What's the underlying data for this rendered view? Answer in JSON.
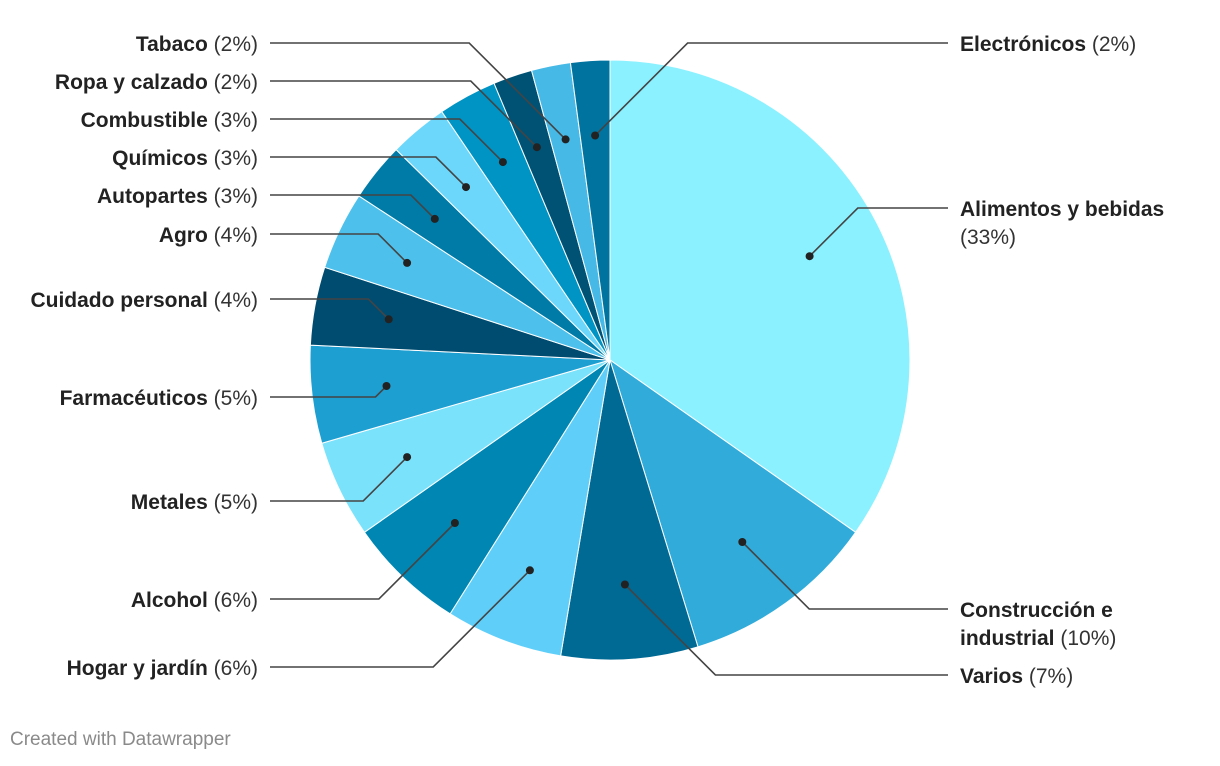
{
  "chart_data": {
    "type": "pie",
    "categories": [
      "Alimentos y bebidas",
      "Construcción e industrial",
      "Varios",
      "Hogar y jardín",
      "Alcohol",
      "Metales",
      "Farmacéuticos",
      "Cuidado personal",
      "Agro",
      "Autopartes",
      "Químicos",
      "Combustible",
      "Ropa y calzado",
      "Tabaco",
      "Electrónicos"
    ],
    "values": [
      33,
      10,
      7,
      6,
      6,
      5,
      5,
      4,
      4,
      3,
      3,
      3,
      2,
      2,
      2
    ],
    "value_labels": [
      "(33%)",
      "(10%)",
      "(7%)",
      "(6%)",
      "(6%)",
      "(5%)",
      "(5%)",
      "(4%)",
      "(4%)",
      "(3%)",
      "(3%)",
      "(3%)",
      "(2%)",
      "(2%)",
      "(2%)"
    ],
    "colors": [
      "#8bf1ff",
      "#31abd9",
      "#006994",
      "#5fcffa",
      "#0086b3",
      "#7be2fb",
      "#1e9fd2",
      "#004c70",
      "#4dc1ec",
      "#007aa6",
      "#6cd7fb",
      "#0094c4",
      "#005275",
      "#46b9e6",
      "#00739f"
    ],
    "legend_position": "external-labels",
    "title": ""
  },
  "footer": {
    "credit": "Created with Datawrapper"
  }
}
